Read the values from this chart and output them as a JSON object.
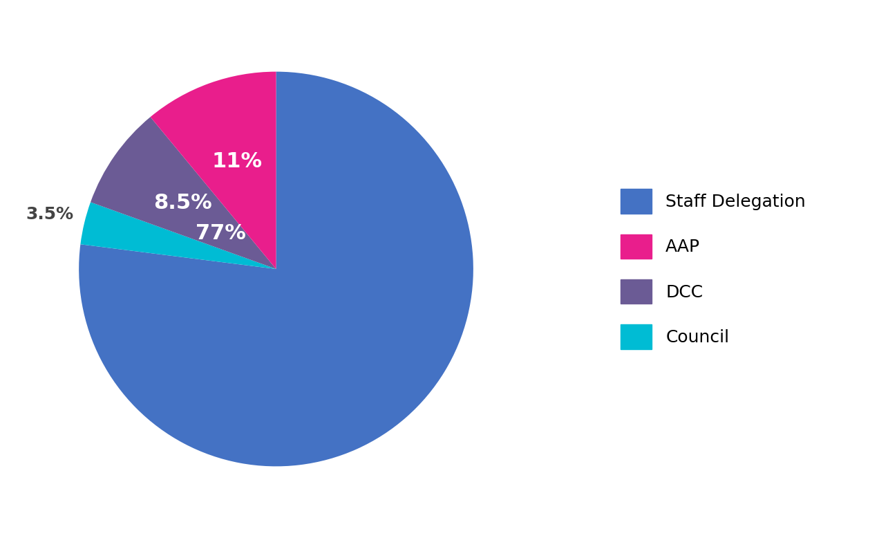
{
  "labels": [
    "Staff Delegation",
    "AAP",
    "DCC",
    "Council"
  ],
  "colors": [
    "#4472C4",
    "#E91E8C",
    "#6B5B95",
    "#00BCD4"
  ],
  "background_color": "#ffffff",
  "legend_fontsize": 18,
  "pct_fontsize": 22,
  "pie_order": [
    "Staff Delegation",
    "Council",
    "DCC",
    "AAP"
  ],
  "pie_values": [
    77,
    3.5,
    8.5,
    11
  ],
  "pie_colors": [
    "#4472C4",
    "#00BCD4",
    "#6B5B95",
    "#E91E8C"
  ],
  "pct_labels": [
    "77%",
    "3.5%",
    "8.5%",
    "11%"
  ],
  "pct_colors": [
    "white",
    "black",
    "white",
    "white"
  ]
}
